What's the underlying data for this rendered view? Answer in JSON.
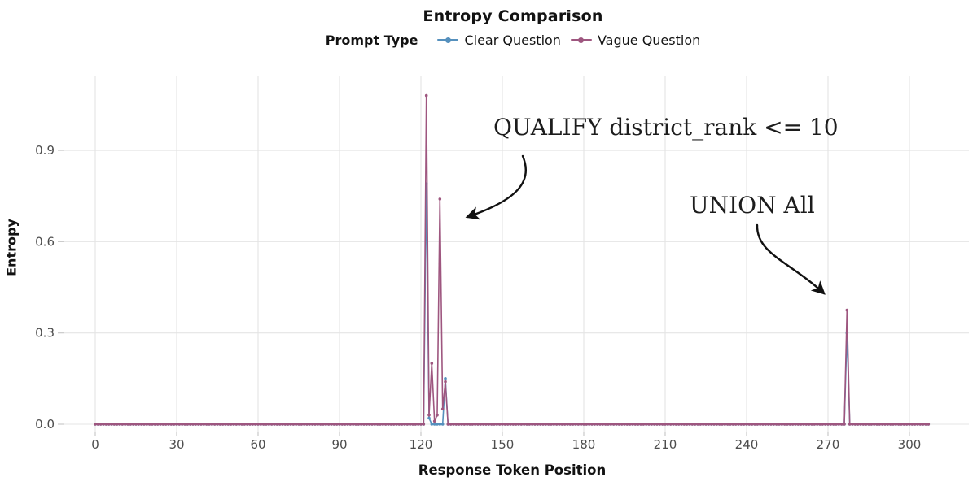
{
  "chart_data": {
    "type": "line",
    "title": "Entropy Comparison",
    "legend_title": "Prompt Type",
    "legend_position": "top",
    "xlabel": "Response Token Position",
    "ylabel": "Entropy",
    "x_ticks": [
      0,
      30,
      60,
      90,
      120,
      150,
      180,
      210,
      240,
      270,
      300
    ],
    "y_ticks": [
      "0.0",
      "0.3",
      "0.6",
      "0.9"
    ],
    "x_range": [
      0,
      307
    ],
    "xlim": [
      -5,
      312
    ],
    "ylim": [
      0,
      1.12
    ],
    "grid": true,
    "baseline_value": 0.0,
    "series": [
      {
        "name": "Clear Question",
        "color": "#5590BD",
        "marker": "point",
        "peaks": {
          "122": 0.79,
          "123": 0.02,
          "129": 0.15,
          "277": 0.3
        }
      },
      {
        "name": "Vague Question",
        "color": "#9E567F",
        "marker": "point",
        "peaks": {
          "122": 1.08,
          "123": 0.03,
          "124": 0.2,
          "125": 0.01,
          "126": 0.03,
          "127": 0.74,
          "128": 0.05,
          "129": 0.14,
          "277": 0.375
        }
      }
    ],
    "annotations": [
      {
        "text": "QUALIFY district_rank <= 10",
        "points_to_token": 127
      },
      {
        "text": "UNION All",
        "points_to_token": 277
      }
    ]
  },
  "colors": {
    "gridline": "#e4e4e4",
    "tick": "#c9c9c9",
    "tick_label": "#4d4d4d",
    "text": "#121212",
    "arrow": "#111111"
  }
}
